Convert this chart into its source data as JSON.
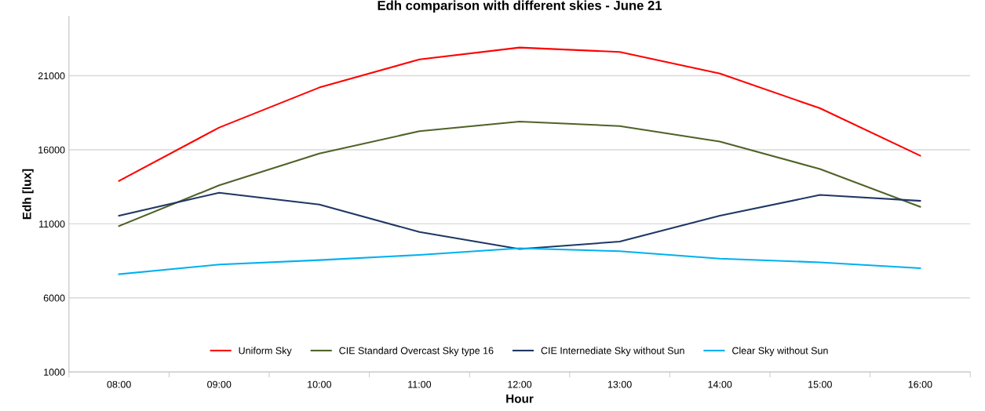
{
  "chart_data": {
    "type": "line",
    "title": "Edh comparison with different skies - June 21",
    "xlabel": "Hour",
    "ylabel": "Edh [lux]",
    "categories": [
      "08:00",
      "09:00",
      "10:00",
      "11:00",
      "12:00",
      "13:00",
      "14:00",
      "15:00",
      "16:00"
    ],
    "series": [
      {
        "name": "Uniform Sky",
        "color": "#ff0000",
        "values": [
          13900,
          17500,
          20200,
          22100,
          22900,
          22600,
          21150,
          18800,
          15600
        ]
      },
      {
        "name": "CIE Standard Overcast Sky type 16",
        "color": "#4f6228",
        "values": [
          10850,
          13600,
          15750,
          17250,
          17900,
          17600,
          16550,
          14700,
          12150
        ]
      },
      {
        "name": "CIE Internediate Sky without Sun",
        "color": "#1f3864",
        "values": [
          11550,
          13100,
          12300,
          10450,
          9300,
          9800,
          11550,
          12950,
          12550
        ]
      },
      {
        "name": "Clear Sky without Sun",
        "color": "#00b0f0",
        "values": [
          7600,
          8250,
          8550,
          8900,
          9350,
          9150,
          8650,
          8400,
          8000
        ]
      }
    ],
    "ylim": [
      1000,
      25000
    ],
    "yticks": [
      1000,
      6000,
      11000,
      16000,
      21000
    ],
    "grid": "y",
    "legend": "bottom",
    "marker": "none",
    "line_style": "solid"
  }
}
